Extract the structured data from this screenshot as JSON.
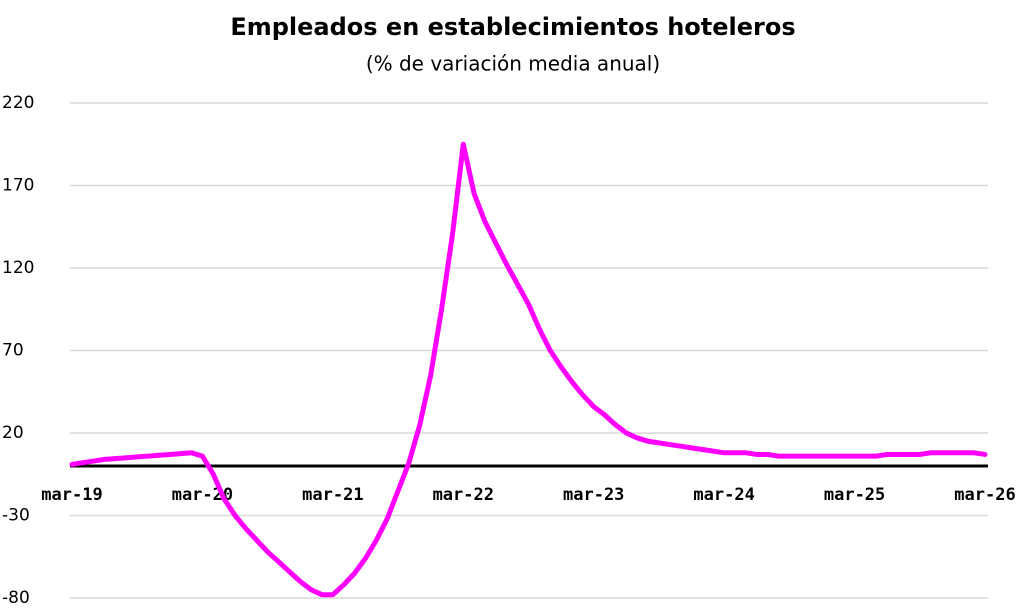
{
  "chart_data": {
    "type": "line",
    "title": "Empleados en establecimientos hoteleros",
    "subtitle": "(% de variación media anual)",
    "categories": [
      "mar-19",
      null,
      null,
      null,
      null,
      null,
      null,
      null,
      null,
      null,
      null,
      null,
      "mar-20",
      null,
      null,
      null,
      null,
      null,
      null,
      null,
      null,
      null,
      null,
      null,
      "mar-21",
      null,
      null,
      null,
      null,
      null,
      null,
      null,
      null,
      null,
      null,
      null,
      "mar-22",
      null,
      null,
      null,
      null,
      null,
      null,
      null,
      null,
      null,
      null,
      null,
      "mar-23",
      null,
      null,
      null,
      null,
      null,
      null,
      null,
      null,
      null,
      null,
      null,
      "mar-24",
      null,
      null,
      null,
      null,
      null,
      null,
      null,
      null,
      null,
      null,
      null,
      "mar-25",
      null,
      null,
      null,
      null,
      null,
      null,
      null,
      null,
      null,
      null,
      null,
      "mar-26"
    ],
    "values": [
      1,
      2,
      3,
      4,
      4.5,
      5,
      5.5,
      6,
      6.5,
      7,
      7.5,
      8,
      6,
      -5,
      -20,
      -30,
      -38,
      -45,
      -52,
      -58,
      -64,
      -70,
      -75,
      -78,
      -78,
      -72,
      -65,
      -56,
      -45,
      -32,
      -15,
      2,
      25,
      55,
      95,
      140,
      195,
      165,
      148,
      135,
      122,
      110,
      98,
      83,
      70,
      60,
      51,
      43,
      36,
      31,
      25,
      20,
      17,
      15,
      14,
      13,
      12,
      11,
      10,
      9,
      8,
      8,
      8,
      7,
      7,
      6,
      6,
      6,
      6,
      6,
      6,
      6,
      6,
      6,
      6,
      7,
      7,
      7,
      7,
      8,
      8,
      8,
      8,
      8,
      7
    ],
    "color": "#ff00ff",
    "ylim": [
      -80,
      220
    ],
    "yticks": [
      -80,
      -30,
      20,
      70,
      120,
      170,
      220
    ],
    "grid": true
  }
}
